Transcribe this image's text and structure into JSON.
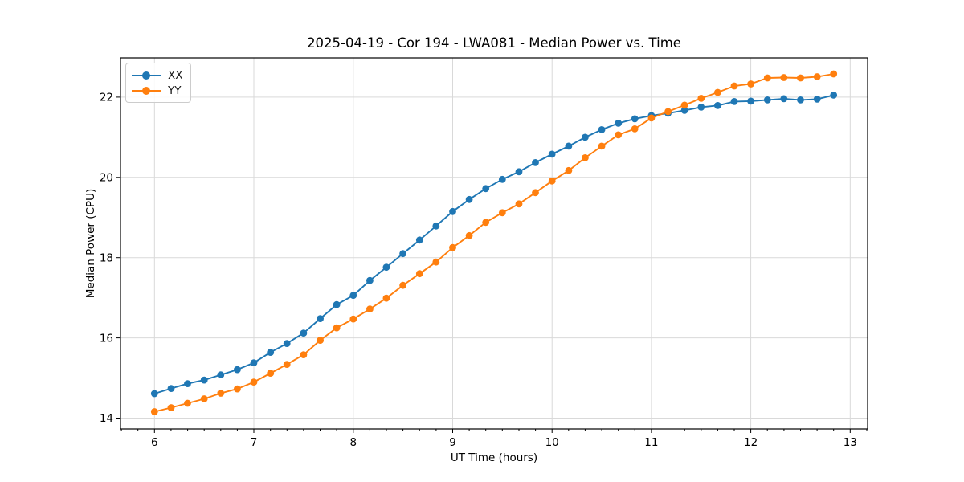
{
  "chart_data": {
    "type": "line",
    "title": "2025-04-19 - Cor 194 - LWA081 - Median Power vs. Time",
    "xlabel": "UT Time (hours)",
    "ylabel": "Median Power (CPU)",
    "xlim": [
      5.658,
      13.175
    ],
    "ylim": [
      13.73,
      22.98
    ],
    "xticks": [
      6,
      7,
      8,
      9,
      10,
      11,
      12,
      13
    ],
    "yticks": [
      14,
      16,
      18,
      20,
      22
    ],
    "x_minor_step": 0.1666667,
    "grid": true,
    "legend_position": "upper left",
    "colors": {
      "grid": "#d9d9d9",
      "frame": "#000000",
      "tick": "#000000",
      "background": "#ffffff"
    },
    "x": [
      6.0,
      6.167,
      6.333,
      6.5,
      6.667,
      6.833,
      7.0,
      7.167,
      7.333,
      7.5,
      7.667,
      7.833,
      8.0,
      8.167,
      8.333,
      8.5,
      8.667,
      8.833,
      9.0,
      9.167,
      9.333,
      9.5,
      9.667,
      9.833,
      10.0,
      10.167,
      10.333,
      10.5,
      10.667,
      10.833,
      11.0,
      11.167,
      11.333,
      11.5,
      11.667,
      11.833,
      12.0,
      12.167,
      12.333,
      12.5,
      12.667,
      12.833
    ],
    "series": [
      {
        "name": "XX",
        "color": "#1f77b4",
        "values": [
          14.61,
          14.74,
          14.86,
          14.95,
          15.08,
          15.21,
          15.38,
          15.64,
          15.86,
          16.12,
          16.48,
          16.83,
          17.06,
          17.43,
          17.76,
          18.1,
          18.44,
          18.79,
          19.15,
          19.45,
          19.72,
          19.95,
          20.14,
          20.37,
          20.58,
          20.78,
          21.0,
          21.19,
          21.35,
          21.46,
          21.54,
          21.6,
          21.67,
          21.75,
          21.79,
          21.89,
          21.9,
          21.93,
          21.96,
          21.93,
          21.95,
          22.05
        ]
      },
      {
        "name": "YY",
        "color": "#ff7f0e",
        "values": [
          14.16,
          14.26,
          14.37,
          14.48,
          14.62,
          14.73,
          14.9,
          15.12,
          15.34,
          15.58,
          15.94,
          16.25,
          16.47,
          16.72,
          16.99,
          17.31,
          17.6,
          17.89,
          18.25,
          18.55,
          18.88,
          19.12,
          19.34,
          19.62,
          19.91,
          20.17,
          20.49,
          20.78,
          21.06,
          21.21,
          21.48,
          21.64,
          21.8,
          21.97,
          22.12,
          22.28,
          22.33,
          22.48,
          22.49,
          22.48,
          22.51,
          22.58
        ]
      }
    ]
  }
}
